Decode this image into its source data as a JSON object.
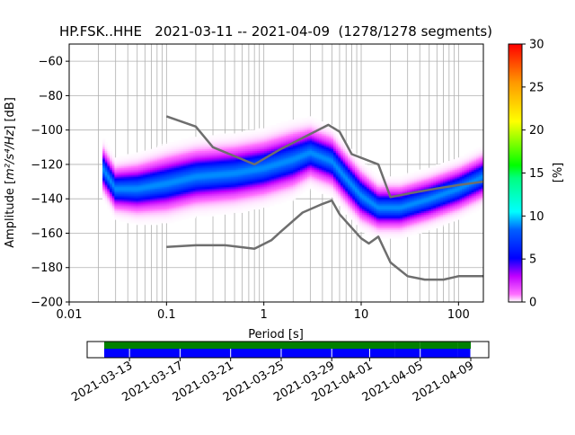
{
  "chart_data": [
    {
      "type": "heatmap",
      "subtype": "probabilistic-power-spectral-density",
      "title": "HP.FSK..HHE   2021-03-11 -- 2021-04-09  (1278/1278 segments)",
      "xlabel": "Period [s]",
      "ylabel_prefix": "Amplitude [",
      "ylabel_unit": "m²/s⁴/Hz",
      "ylabel_suffix": "] [dB]",
      "x_scale": "log",
      "xlim": [
        0.01,
        180
      ],
      "ylim": [
        -200,
        -50
      ],
      "x_ticks": [
        {
          "value": 0.01,
          "label": "0.01"
        },
        {
          "value": 0.1,
          "label": "0.1"
        },
        {
          "value": 1,
          "label": "1"
        },
        {
          "value": 10,
          "label": "10"
        },
        {
          "value": 100,
          "label": "100"
        }
      ],
      "y_ticks": [
        {
          "value": -60,
          "label": "−60"
        },
        {
          "value": -80,
          "label": "−80"
        },
        {
          "value": -100,
          "label": "−100"
        },
        {
          "value": -120,
          "label": "−120"
        },
        {
          "value": -140,
          "label": "−140"
        },
        {
          "value": -160,
          "label": "−160"
        },
        {
          "value": -180,
          "label": "−180"
        },
        {
          "value": -200,
          "label": "−200"
        }
      ],
      "grid": true,
      "colorbar": {
        "label": "[%]",
        "range": [
          0,
          30
        ],
        "ticks": [
          {
            "value": 0,
            "label": "0"
          },
          {
            "value": 5,
            "label": "5"
          },
          {
            "value": 10,
            "label": "10"
          },
          {
            "value": 15,
            "label": "15"
          },
          {
            "value": 20,
            "label": "20"
          },
          {
            "value": 25,
            "label": "25"
          },
          {
            "value": 30,
            "label": "30"
          }
        ]
      },
      "density_ridge": [
        {
          "period": 0.022,
          "mode": -122,
          "width": 7
        },
        {
          "period": 0.03,
          "mode": -134,
          "width": 7
        },
        {
          "period": 0.05,
          "mode": -134,
          "width": 8
        },
        {
          "period": 0.1,
          "mode": -131,
          "width": 9
        },
        {
          "period": 0.2,
          "mode": -127,
          "width": 9
        },
        {
          "period": 0.5,
          "mode": -125,
          "width": 9
        },
        {
          "period": 1,
          "mode": -122,
          "width": 9
        },
        {
          "period": 2,
          "mode": -117,
          "width": 9
        },
        {
          "period": 3,
          "mode": -113,
          "width": 8
        },
        {
          "period": 5,
          "mode": -118,
          "width": 8
        },
        {
          "period": 7,
          "mode": -128,
          "width": 8
        },
        {
          "period": 10,
          "mode": -138,
          "width": 8
        },
        {
          "period": 15,
          "mode": -145,
          "width": 7
        },
        {
          "period": 25,
          "mode": -145,
          "width": 7
        },
        {
          "period": 50,
          "mode": -140,
          "width": 7
        },
        {
          "period": 100,
          "mode": -134,
          "width": 7
        },
        {
          "period": 180,
          "mode": -127,
          "width": 7
        }
      ],
      "series": [
        {
          "x": [
            0.1,
            0.2,
            0.3,
            0.8,
            1.5,
            4.6,
            6,
            8,
            15,
            20,
            30,
            60,
            100,
            180
          ],
          "y": [
            -92,
            -98,
            -110,
            -120,
            -111,
            -97,
            -101,
            -114,
            -120,
            -139,
            -137,
            -134,
            -132,
            -130
          ]
        },
        {
          "x": [
            0.1,
            0.2,
            0.4,
            0.8,
            1.2,
            1.5,
            2.5,
            4,
            5,
            6,
            10,
            12,
            15,
            20,
            30,
            45,
            70,
            100,
            180
          ],
          "y": [
            -168,
            -167,
            -167,
            -169,
            -164,
            -159,
            -148,
            -143,
            -141,
            -149,
            -163,
            -166,
            -162,
            -177,
            -185,
            -187,
            -187,
            -185,
            -185
          ]
        }
      ]
    },
    {
      "type": "timeline",
      "x_ticks": [
        "2021-03-13",
        "2021-03-17",
        "2021-03-21",
        "2021-03-25",
        "2021-03-29",
        "2021-04-01",
        "2021-04-05",
        "2021-04-09"
      ],
      "xlim": [
        "2021-03-11",
        "2021-04-09"
      ],
      "colors": {
        "coverage": "#008000",
        "data": "#0000ff"
      },
      "segments": [
        [
          "2021-03-11",
          "2021-04-02"
        ],
        [
          "2021-04-03",
          "2021-04-04"
        ],
        [
          "2021-04-05",
          "2021-04-07"
        ],
        [
          "2021-04-08",
          "2021-04-08"
        ],
        [
          "2021-04-09",
          "2021-04-12"
        ]
      ]
    }
  ]
}
